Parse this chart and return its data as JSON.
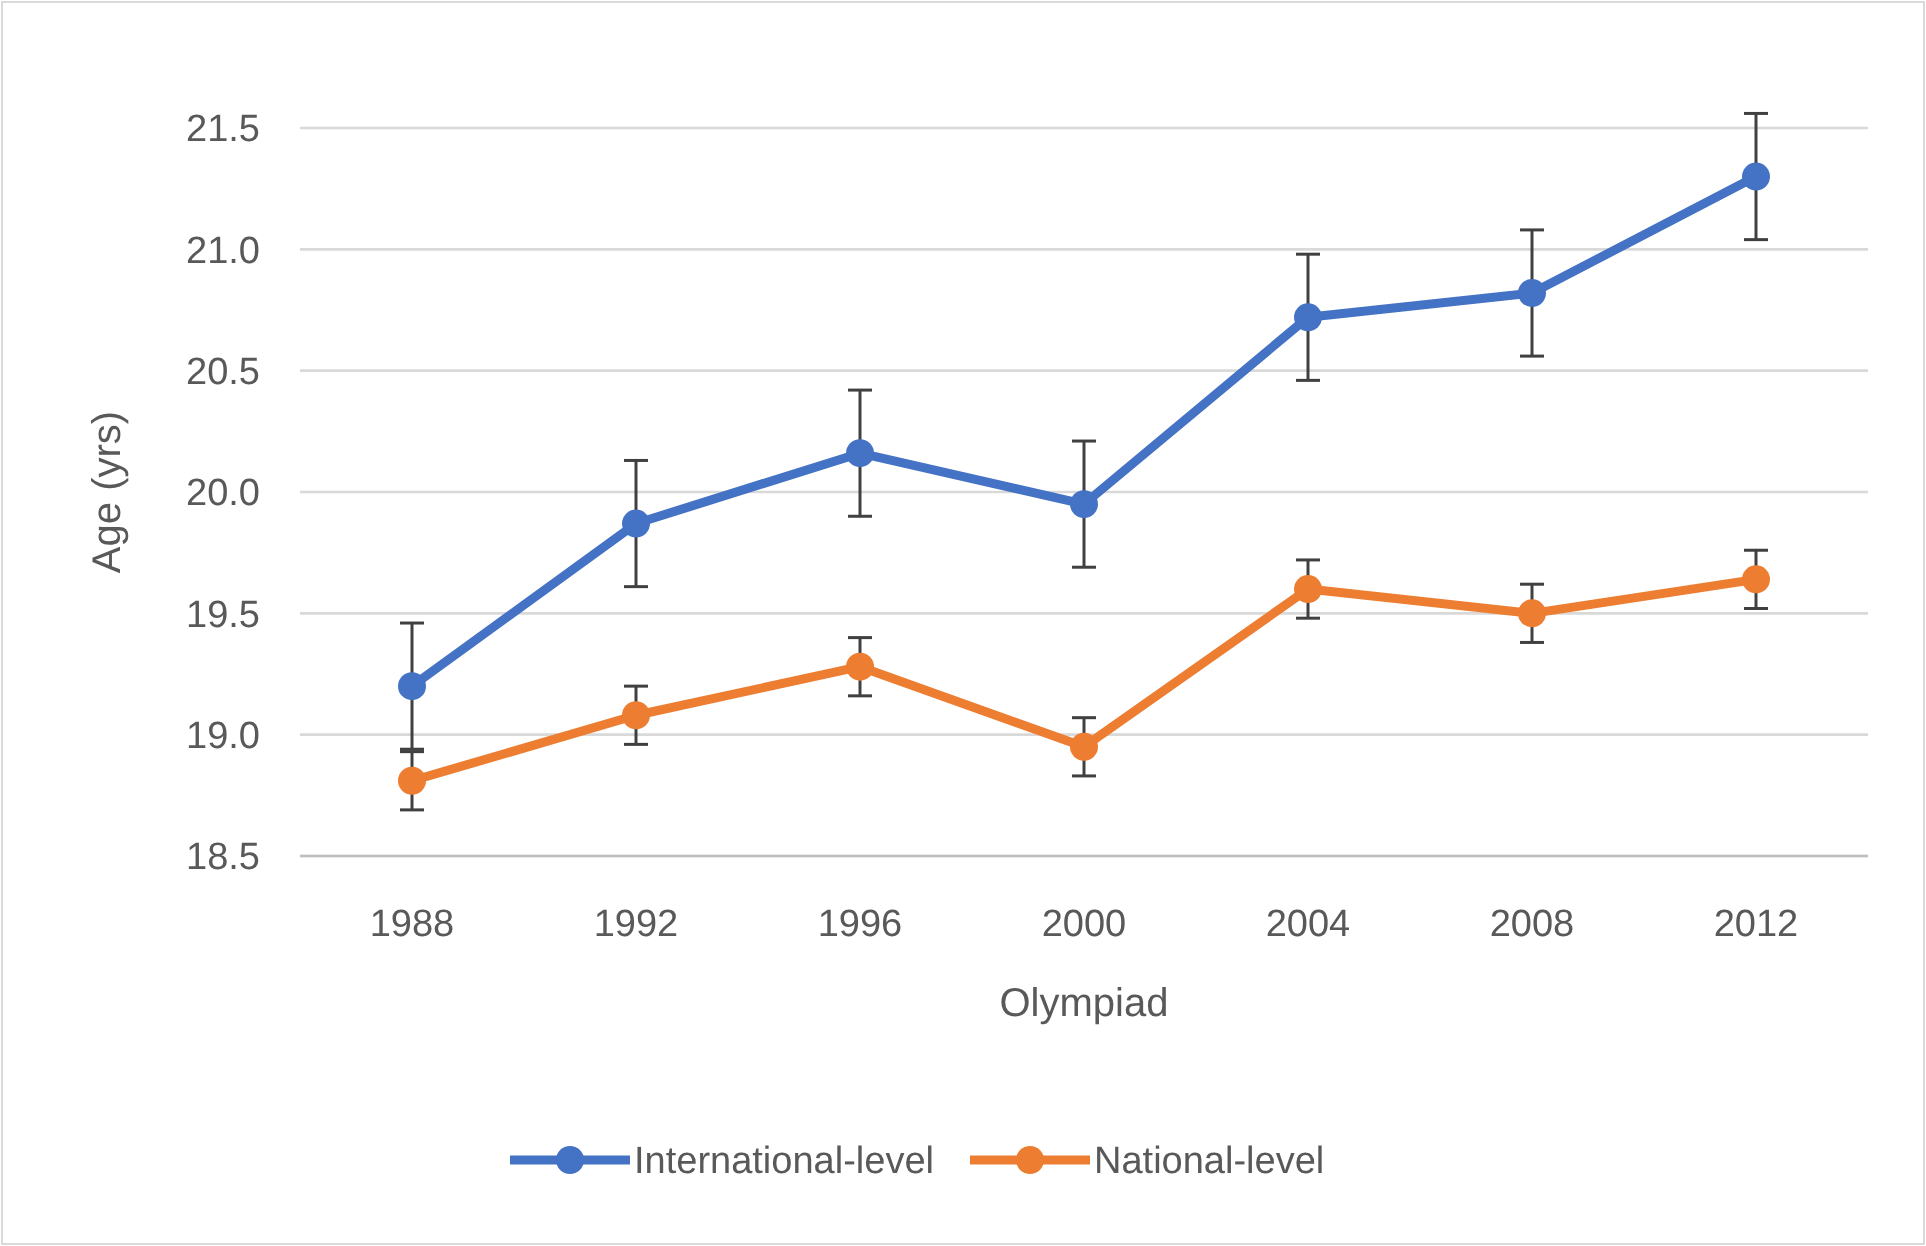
{
  "chart_data": {
    "type": "line",
    "xlabel": "Olympiad",
    "ylabel": "Age (yrs)",
    "categories": [
      "1988",
      "1992",
      "1996",
      "2000",
      "2004",
      "2008",
      "2012"
    ],
    "series": [
      {
        "name": "International-level",
        "color": "#4472c4",
        "values": [
          19.2,
          19.87,
          20.16,
          19.95,
          20.72,
          20.82,
          21.3
        ],
        "errors": [
          0.26,
          0.26,
          0.26,
          0.26,
          0.26,
          0.26,
          0.26
        ]
      },
      {
        "name": "National-level",
        "color": "#ed7d31",
        "values": [
          18.81,
          19.08,
          19.28,
          18.95,
          19.6,
          19.5,
          19.64
        ],
        "errors": [
          0.12,
          0.12,
          0.12,
          0.12,
          0.12,
          0.12,
          0.12
        ]
      }
    ],
    "ylim": [
      18.5,
      21.5
    ],
    "yticks": [
      {
        "value": 18.5,
        "label": "18.5"
      },
      {
        "value": 19,
        "label": "19.0"
      },
      {
        "value": 19.5,
        "label": "19.5"
      },
      {
        "value": 20,
        "label": "20.0"
      },
      {
        "value": 20.5,
        "label": "20.5"
      },
      {
        "value": 21,
        "label": "21.0"
      },
      {
        "value": 21.5,
        "label": "21.5"
      }
    ],
    "grid": "y",
    "legend": "bottom",
    "marker": "circle",
    "line_style": "solid"
  }
}
